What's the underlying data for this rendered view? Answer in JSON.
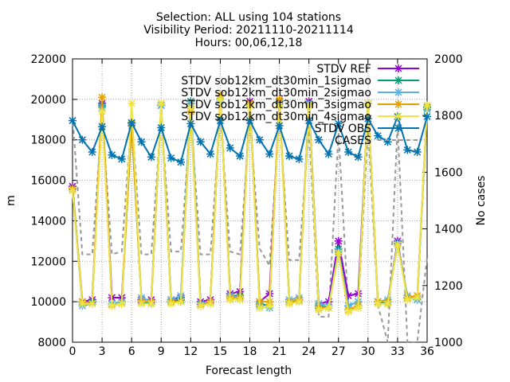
{
  "chart_data": {
    "type": "line",
    "title_lines": [
      "Selection: ALL using   104 stations",
      "Visibility   Period: 20211110-20211114",
      "Hours: 00,06,12,18"
    ],
    "xlabel": "Forecast length",
    "ylabel": "m",
    "y2label": "No cases",
    "xlim": [
      0,
      36
    ],
    "ylim": [
      8000,
      22000
    ],
    "y2lim": [
      1000,
      2000
    ],
    "grid": true,
    "legend_position": "top-right",
    "xticks": [
      "0",
      "3",
      "6",
      "9",
      "12",
      "15",
      "18",
      "21",
      "24",
      "27",
      "30",
      "33",
      "36"
    ],
    "yticks": [
      "8000",
      "10000",
      "12000",
      "14000",
      "16000",
      "18000",
      "20000",
      "22000"
    ],
    "y2ticks": [
      "1000",
      "1200",
      "1400",
      "1600",
      "1800",
      "2000"
    ],
    "x": [
      0,
      1,
      2,
      3,
      4,
      5,
      6,
      7,
      8,
      9,
      10,
      11,
      12,
      13,
      14,
      15,
      16,
      17,
      18,
      19,
      20,
      21,
      22,
      23,
      24,
      25,
      26,
      27,
      28,
      29,
      30,
      31,
      32,
      33,
      34,
      35,
      36
    ],
    "series": [
      {
        "name": "STDV REF",
        "color": "#9400d3",
        "marker": "x-star",
        "dash": "solid",
        "axis": "y",
        "values": [
          15700,
          10000,
          10100,
          19800,
          10200,
          10200,
          18800,
          10100,
          10100,
          19700,
          10100,
          10200,
          19800,
          10000,
          10100,
          20000,
          10400,
          10500,
          19900,
          10000,
          10400,
          19900,
          10000,
          10100,
          19900,
          9900,
          10000,
          13000,
          10300,
          10400,
          19800,
          10000,
          10000,
          13000,
          10200,
          10200,
          19600
        ]
      },
      {
        "name": "STDV sob12km_dt30min_1sigmao",
        "color": "#009e73",
        "marker": "x-star",
        "dash": "solid",
        "axis": "y",
        "values": [
          15600,
          9900,
          10000,
          19700,
          9900,
          10000,
          18800,
          10000,
          9900,
          19700,
          10000,
          10100,
          19900,
          9900,
          10000,
          20000,
          10300,
          10300,
          19800,
          9900,
          9800,
          19800,
          10000,
          10000,
          19800,
          9800,
          9700,
          12600,
          9800,
          10000,
          19800,
          10000,
          9900,
          12900,
          10200,
          10100,
          19600
        ]
      },
      {
        "name": "STDV sob12km_dt30min_2sigmao",
        "color": "#56b4e9",
        "marker": "x-star",
        "dash": "solid",
        "axis": "y",
        "values": [
          15500,
          9800,
          9900,
          19600,
          9900,
          10000,
          18700,
          10200,
          10000,
          19700,
          10100,
          10300,
          19800,
          9900,
          10000,
          19900,
          10300,
          10200,
          19800,
          9800,
          9700,
          19800,
          10100,
          10200,
          19800,
          9900,
          9800,
          12500,
          9800,
          10000,
          19800,
          10000,
          10100,
          12900,
          10300,
          10100,
          19500
        ]
      },
      {
        "name": "STDV sob12km_dt30min_3sigmao",
        "color": "#e69f00",
        "marker": "x-star",
        "dash": "solid",
        "axis": "y",
        "values": [
          15600,
          10000,
          9900,
          20100,
          9800,
          9900,
          18800,
          10000,
          10000,
          19800,
          10000,
          10000,
          19400,
          9800,
          10000,
          20200,
          10200,
          10200,
          19800,
          10000,
          10000,
          20000,
          10000,
          10100,
          19700,
          9700,
          9700,
          12400,
          9600,
          9800,
          19800,
          10000,
          10000,
          12800,
          10200,
          10300,
          19700
        ]
      },
      {
        "name": "STDV sob12km_dt30min_4sigmao",
        "color": "#f0e442",
        "marker": "x-star",
        "dash": "solid",
        "axis": "y",
        "values": [
          15500,
          9900,
          9900,
          19400,
          9800,
          9900,
          19800,
          9900,
          9900,
          19800,
          9900,
          10000,
          19600,
          9800,
          9900,
          20000,
          10100,
          10100,
          19700,
          9700,
          9800,
          19700,
          9900,
          10000,
          19700,
          9600,
          9700,
          12400,
          9500,
          9700,
          19800,
          9900,
          9900,
          12800,
          10100,
          10200,
          19700
        ]
      },
      {
        "name": "STDV OBS",
        "color": "#0072b2",
        "marker": "x-star",
        "dash": "solid",
        "axis": "y",
        "values": [
          18950,
          18000,
          17400,
          18650,
          17250,
          17050,
          18850,
          17900,
          17150,
          18600,
          17100,
          16900,
          18800,
          17900,
          17300,
          18950,
          17600,
          17200,
          18950,
          18000,
          17300,
          18700,
          17200,
          17050,
          18950,
          18000,
          17300,
          18800,
          17400,
          17150,
          19050,
          18200,
          17900,
          19150,
          17500,
          17400,
          19150
        ]
      },
      {
        "name": "CASES",
        "color": "#999999",
        "marker": "none",
        "dash": "dashed",
        "axis": "y2",
        "values": [
          1800,
          1310,
          1310,
          1800,
          1310,
          1320,
          1800,
          1310,
          1310,
          1800,
          1320,
          1320,
          1800,
          1310,
          1310,
          1800,
          1320,
          1310,
          1780,
          1330,
          1270,
          1790,
          1290,
          1290,
          1760,
          1090,
          1090,
          1740,
          1120,
          1120,
          1760,
          1130,
          1000,
          1770,
          1000,
          1000,
          1300
        ]
      }
    ]
  }
}
